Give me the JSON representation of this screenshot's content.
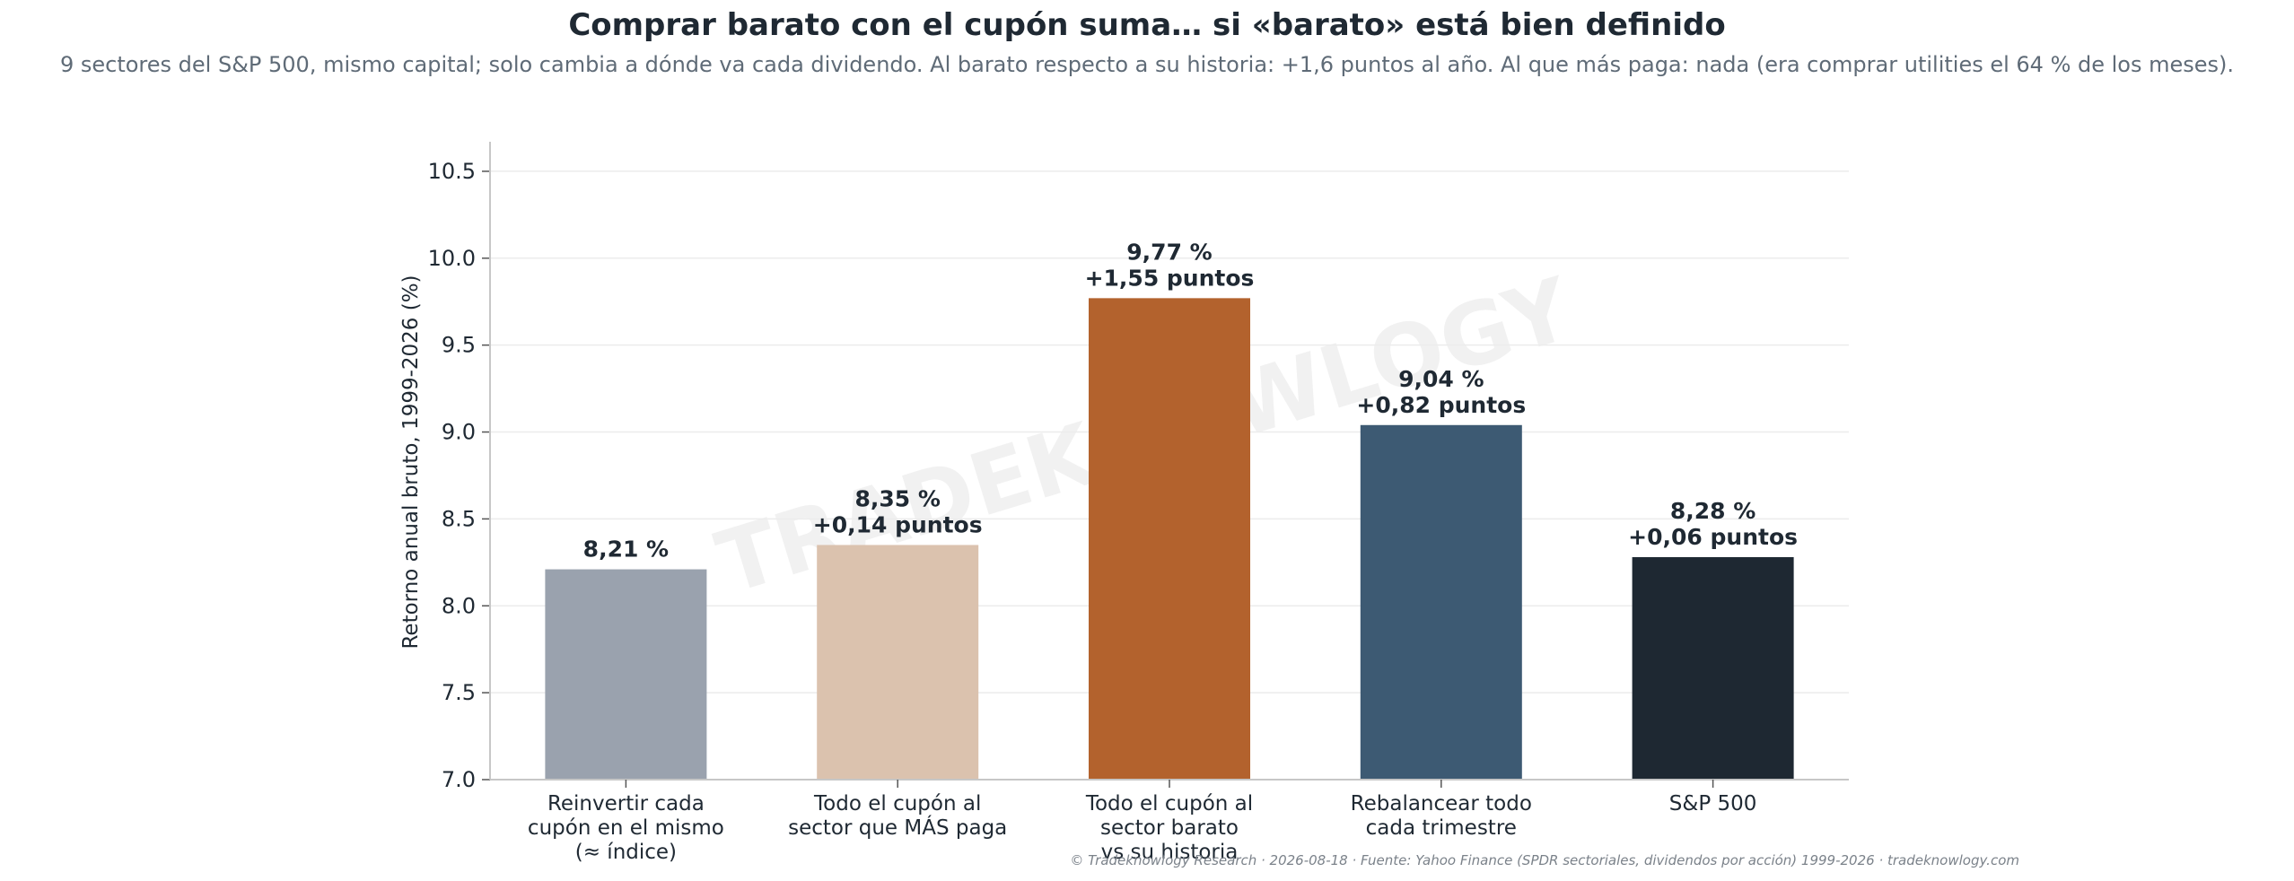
{
  "title": "Comprar barato con el cupón suma… si «barato» está bien definido",
  "subtitle": "9 sectores del S&P 500, mismo capital; solo cambia a dónde va cada dividendo. Al barato respecto a su historia: +1,6 puntos al año. Al que más paga: nada (era comprar utilities el 64 % de los meses).",
  "watermark": "TRADEKNOWLOGY",
  "footer": "© Tradeknowlogy Research   ·   2026-08-18   ·   Fuente: Yahoo Finance (SPDR sectoriales, dividendos por acción) 1999-2026   ·   tradeknowlogy.com",
  "chart_data": {
    "type": "bar",
    "categories": [
      [
        "Reinvertir cada",
        "cupón en el mismo",
        "(≈ índice)"
      ],
      [
        "Todo el cupón al",
        "sector que MÁS paga"
      ],
      [
        "Todo el cupón al",
        "sector barato",
        "vs su historia"
      ],
      [
        "Rebalancear todo",
        "cada trimestre"
      ],
      [
        "S&P 500"
      ]
    ],
    "values": [
      8.21,
      8.35,
      9.77,
      9.04,
      8.28
    ],
    "value_labels": [
      "8,21 %",
      "8,35 %",
      "9,77 %",
      "9,04 %",
      "8,28 %"
    ],
    "delta_labels": [
      "",
      "+0,14 puntos",
      "+1,55 puntos",
      "+0,82 puntos",
      "+0,06 puntos"
    ],
    "colors": [
      "#9aa2ae",
      "#dbc2ae",
      "#b3622d",
      "#3d5a73",
      "#1e2832"
    ],
    "ylabel": "Retorno anual bruto, 1999-2026 (%)",
    "ylim": [
      7.0,
      10.67
    ],
    "yticks": [
      "7.0",
      "7.5",
      "8.0",
      "8.5",
      "9.0",
      "9.5",
      "10.0",
      "10.5"
    ],
    "grid": true,
    "legend": "none"
  }
}
